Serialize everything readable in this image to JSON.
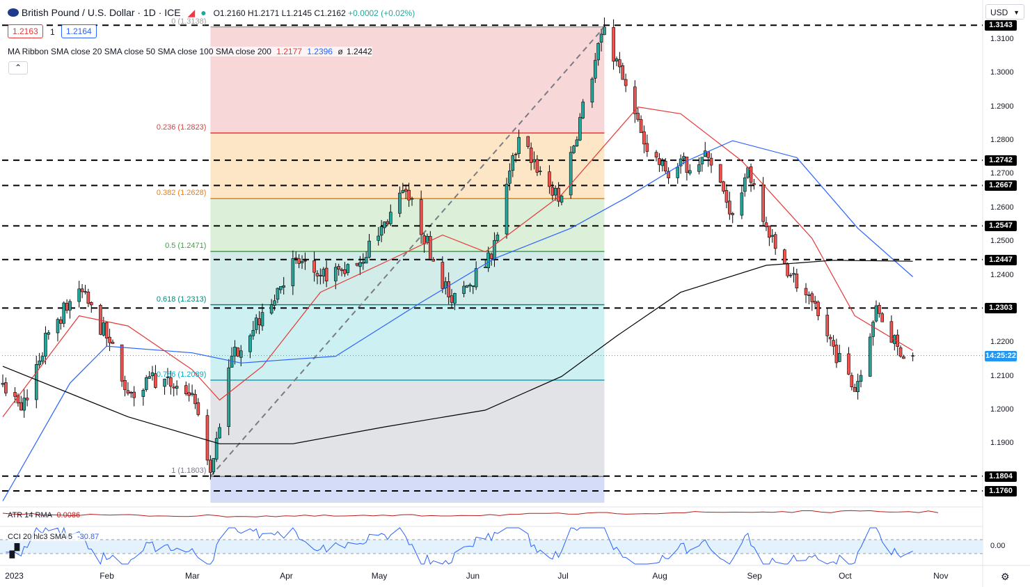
{
  "header": {
    "title": "British Pound / U.S. Dollar · 1D · ICE",
    "o_label": "O",
    "o": "1.2160",
    "h_label": "H",
    "h": "1.2171",
    "l_label": "L",
    "l": "1.2145",
    "c_label": "C",
    "c": "1.2162",
    "change": "+0.0002 (+0.02%)",
    "sell": "1.2163",
    "spread": "1",
    "buy": "1.2164",
    "currency": "USD"
  },
  "indicators": {
    "ma_ribbon": "MA Ribbon SMA close 20 SMA close 50 SMA close 100 SMA close 200",
    "ma_values": [
      "1.2177",
      "1.2396",
      "ø",
      "1.2442"
    ],
    "atr_label": "ATR 14 RMA",
    "atr_value": "0.0086",
    "cci_label": "CCI 20 hlc3 SMA 5",
    "cci_value": "-30.87",
    "cci_zero": "0.00"
  },
  "fib_levels": [
    {
      "ratio": "0",
      "text": "0 (1.3138)",
      "price": 1.3138,
      "color": "#9e9e9e"
    },
    {
      "ratio": "0.236",
      "text": "0.236 (1.2823)",
      "price": 1.2823,
      "color": "#e53935"
    },
    {
      "ratio": "0.382",
      "text": "0.382 (1.2628)",
      "price": 1.2628,
      "color": "#f57c00"
    },
    {
      "ratio": "0.5",
      "text": "0.5 (1.2471)",
      "price": 1.2471,
      "color": "#43a047"
    },
    {
      "ratio": "0.618",
      "text": "0.618 (1.2313)",
      "price": 1.2313,
      "color": "#00897b"
    },
    {
      "ratio": "0.786",
      "text": "0.786 (1.2089)",
      "price": 1.2089,
      "color": "#00acc1"
    },
    {
      "ratio": "1",
      "text": "1 (1.1803)",
      "price": 1.1803,
      "color": "#787b86"
    }
  ],
  "horizontal_levels": [
    "1.3143",
    "1.2742",
    "1.2667",
    "1.2547",
    "1.2447",
    "1.2303",
    "1.1804",
    "1.1760"
  ],
  "countdown": "14:25:22",
  "price_ticks": [
    "1.3100",
    "1.3000",
    "1.2900",
    "1.2800",
    "1.2700",
    "1.2600",
    "1.2500",
    "1.2400",
    "1.2200",
    "1.2100",
    "1.2000",
    "1.1900"
  ],
  "date_ticks": [
    "2023",
    "Feb",
    "Mar",
    "Apr",
    "May",
    "Jun",
    "Jul",
    "Aug",
    "Sep",
    "Oct",
    "Nov"
  ],
  "colors": {
    "up": "#26a69a",
    "down": "#ef5350",
    "sma20": "#e53935",
    "sma50": "#2962ff",
    "sma200": "#000000",
    "cci": "#2962ff",
    "atr": "#b71c1c"
  },
  "chart_data": {
    "type": "candlestick",
    "title": "British Pound / U.S. Dollar · 1D · ICE",
    "symbol": "GBP/USD",
    "timeframe": "1D",
    "ylim": [
      1.175,
      1.316
    ],
    "x_range": [
      "2022-12-29",
      "2023-11-01"
    ],
    "last_price": 1.2162,
    "anchors": [
      {
        "date": "2022-12-29",
        "close": 1.208
      },
      {
        "date": "2023-01-04",
        "close": 1.2
      },
      {
        "date": "2023-01-13",
        "close": 1.223
      },
      {
        "date": "2023-01-23",
        "close": 1.236
      },
      {
        "date": "2023-02-02",
        "close": 1.22
      },
      {
        "date": "2023-02-08",
        "close": 1.205
      },
      {
        "date": "2023-02-15",
        "close": 1.21
      },
      {
        "date": "2023-03-01",
        "close": 1.205
      },
      {
        "date": "2023-03-07",
        "close": 1.1815
      },
      {
        "date": "2023-03-14",
        "close": 1.216
      },
      {
        "date": "2023-03-24",
        "close": 1.229
      },
      {
        "date": "2023-04-04",
        "close": 1.245
      },
      {
        "date": "2023-04-12",
        "close": 1.24
      },
      {
        "date": "2023-04-24",
        "close": 1.243
      },
      {
        "date": "2023-05-10",
        "close": 1.265
      },
      {
        "date": "2023-05-25",
        "close": 1.232
      },
      {
        "date": "2023-06-07",
        "close": 1.245
      },
      {
        "date": "2023-06-16",
        "close": 1.281
      },
      {
        "date": "2023-06-29",
        "close": 1.262
      },
      {
        "date": "2023-07-14",
        "close": 1.3138
      },
      {
        "date": "2023-07-27",
        "close": 1.279
      },
      {
        "date": "2023-08-03",
        "close": 1.271
      },
      {
        "date": "2023-08-17",
        "close": 1.275
      },
      {
        "date": "2023-08-25",
        "close": 1.258
      },
      {
        "date": "2023-08-30",
        "close": 1.272
      },
      {
        "date": "2023-09-08",
        "close": 1.248
      },
      {
        "date": "2023-09-22",
        "close": 1.228
      },
      {
        "date": "2023-10-04",
        "close": 1.2055
      },
      {
        "date": "2023-10-11",
        "close": 1.231
      },
      {
        "date": "2023-10-19",
        "close": 1.216
      },
      {
        "date": "2023-10-23",
        "close": 1.2162
      }
    ],
    "sma_lines": [
      {
        "name": "SMA 20",
        "points": [
          [
            "2022-12-29",
            1.198
          ],
          [
            "2023-01-23",
            1.228
          ],
          [
            "2023-02-08",
            1.225
          ],
          [
            "2023-03-01",
            1.212
          ],
          [
            "2023-03-10",
            1.203
          ],
          [
            "2023-03-24",
            1.213
          ],
          [
            "2023-04-12",
            1.235
          ],
          [
            "2023-05-01",
            1.243
          ],
          [
            "2023-05-22",
            1.252
          ],
          [
            "2023-06-05",
            1.247
          ],
          [
            "2023-06-30",
            1.264
          ],
          [
            "2023-07-25",
            1.29
          ],
          [
            "2023-08-08",
            1.288
          ],
          [
            "2023-08-28",
            1.274
          ],
          [
            "2023-09-20",
            1.251
          ],
          [
            "2023-10-04",
            1.228
          ],
          [
            "2023-10-23",
            1.2177
          ]
        ]
      },
      {
        "name": "SMA 50",
        "points": [
          [
            "2022-12-29",
            1.173
          ],
          [
            "2023-01-20",
            1.208
          ],
          [
            "2023-02-01",
            1.219
          ],
          [
            "2023-03-01",
            1.217
          ],
          [
            "2023-03-17",
            1.214
          ],
          [
            "2023-04-17",
            1.216
          ],
          [
            "2023-05-15",
            1.232
          ],
          [
            "2023-06-08",
            1.245
          ],
          [
            "2023-07-03",
            1.254
          ],
          [
            "2023-07-21",
            1.263
          ],
          [
            "2023-08-10",
            1.274
          ],
          [
            "2023-08-25",
            1.28
          ],
          [
            "2023-09-15",
            1.275
          ],
          [
            "2023-10-05",
            1.254
          ],
          [
            "2023-10-23",
            1.2396
          ]
        ]
      },
      {
        "name": "SMA 200",
        "points": [
          [
            "2022-12-29",
            1.213
          ],
          [
            "2023-02-08",
            1.198
          ],
          [
            "2023-03-10",
            1.19
          ],
          [
            "2023-04-03",
            1.19
          ],
          [
            "2023-05-03",
            1.195
          ],
          [
            "2023-06-05",
            1.2
          ],
          [
            "2023-06-30",
            1.21
          ],
          [
            "2023-07-18",
            1.222
          ],
          [
            "2023-08-08",
            1.235
          ],
          [
            "2023-09-05",
            1.243
          ],
          [
            "2023-09-27",
            1.2445
          ],
          [
            "2023-10-23",
            1.2442
          ]
        ]
      }
    ]
  }
}
